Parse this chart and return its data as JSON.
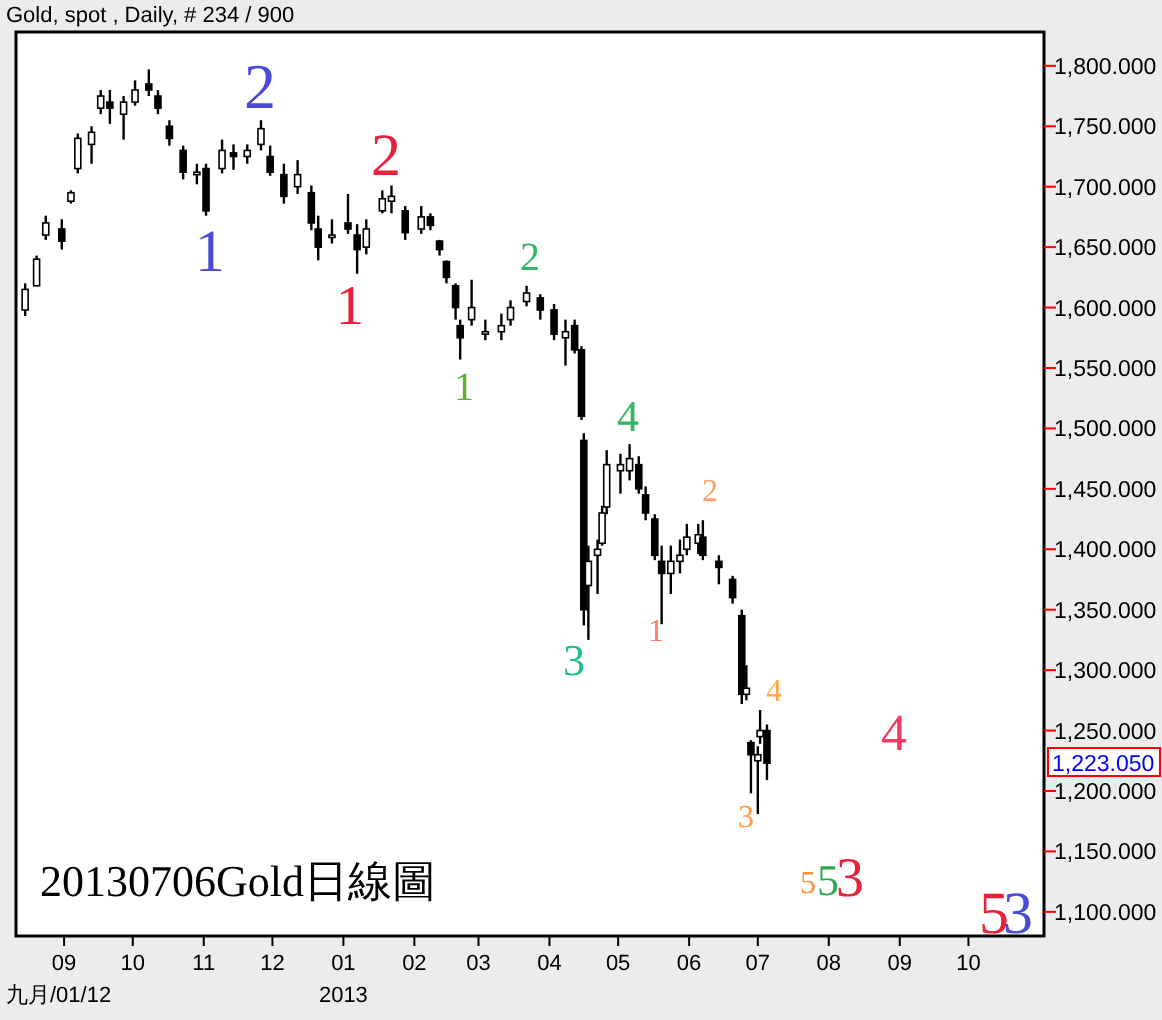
{
  "chart_data": {
    "type": "candlestick",
    "title": "Gold, spot , Daily, # 234 / 900",
    "color": "#000000",
    "x": [
      "2012-08-15",
      "2012-08-20",
      "2012-08-24",
      "2012-08-31",
      "2012-09-04",
      "2012-09-07",
      "2012-09-13",
      "2012-09-17",
      "2012-09-21",
      "2012-09-27",
      "2012-10-02",
      "2012-10-08",
      "2012-10-12",
      "2012-10-17",
      "2012-10-23",
      "2012-10-29",
      "2012-11-02",
      "2012-11-09",
      "2012-11-14",
      "2012-11-20",
      "2012-11-26",
      "2012-11-30",
      "2012-12-06",
      "2012-12-12",
      "2012-12-18",
      "2012-12-21",
      "2012-12-27",
      "2013-01-03",
      "2013-01-07",
      "2013-01-11",
      "2013-01-18",
      "2013-01-22",
      "2013-01-28",
      "2013-02-04",
      "2013-02-08",
      "2013-02-12",
      "2013-02-15",
      "2013-02-19",
      "2013-02-21",
      "2013-02-26",
      "2013-03-04",
      "2013-03-11",
      "2013-03-15",
      "2013-03-22",
      "2013-03-28",
      "2013-04-03",
      "2013-04-08",
      "2013-04-12",
      "2013-04-15",
      "2013-04-16",
      "2013-04-18",
      "2013-04-22",
      "2013-04-24",
      "2013-04-26",
      "2013-05-02",
      "2013-05-06",
      "2013-05-10",
      "2013-05-13",
      "2013-05-17",
      "2013-05-20",
      "2013-05-24",
      "2013-05-28",
      "2013-05-31",
      "2013-06-05",
      "2013-06-07",
      "2013-06-14",
      "2013-06-20",
      "2013-06-24",
      "2013-06-26",
      "2013-06-28",
      "2013-07-01",
      "2013-07-02",
      "2013-07-05"
    ],
    "ohlc": [
      [
        1598,
        1620,
        1593,
        1615
      ],
      [
        1618,
        1643,
        1618,
        1640
      ],
      [
        1660,
        1676,
        1656,
        1670
      ],
      [
        1665,
        1673,
        1648,
        1655
      ],
      [
        1688,
        1697,
        1686,
        1695
      ],
      [
        1715,
        1744,
        1711,
        1740
      ],
      [
        1735,
        1750,
        1719,
        1745
      ],
      [
        1765,
        1780,
        1760,
        1775
      ],
      [
        1770,
        1780,
        1752,
        1765
      ],
      [
        1760,
        1775,
        1739,
        1770
      ],
      [
        1770,
        1788,
        1767,
        1780
      ],
      [
        1785,
        1797,
        1775,
        1780
      ],
      [
        1775,
        1780,
        1760,
        1765
      ],
      [
        1750,
        1755,
        1734,
        1740
      ],
      [
        1730,
        1734,
        1706,
        1712
      ],
      [
        1710,
        1719,
        1702,
        1712
      ],
      [
        1715,
        1719,
        1676,
        1680
      ],
      [
        1715,
        1739,
        1711,
        1730
      ],
      [
        1728,
        1735,
        1714,
        1725
      ],
      [
        1725,
        1735,
        1719,
        1730
      ],
      [
        1735,
        1755,
        1730,
        1748
      ],
      [
        1725,
        1734,
        1709,
        1712
      ],
      [
        1710,
        1719,
        1686,
        1692
      ],
      [
        1700,
        1722,
        1694,
        1710
      ],
      [
        1695,
        1701,
        1664,
        1670
      ],
      [
        1665,
        1676,
        1639,
        1650
      ],
      [
        1658,
        1673,
        1653,
        1660
      ],
      [
        1670,
        1694,
        1661,
        1665
      ],
      [
        1660,
        1669,
        1628,
        1648
      ],
      [
        1650,
        1673,
        1644,
        1665
      ],
      [
        1680,
        1697,
        1678,
        1690
      ],
      [
        1688,
        1701,
        1678,
        1692
      ],
      [
        1680,
        1684,
        1656,
        1662
      ],
      [
        1665,
        1684,
        1661,
        1675
      ],
      [
        1675,
        1678,
        1664,
        1668
      ],
      [
        1655,
        1656,
        1643,
        1648
      ],
      [
        1638,
        1639,
        1620,
        1625
      ],
      [
        1618,
        1620,
        1590,
        1600
      ],
      [
        1585,
        1590,
        1557,
        1575
      ],
      [
        1590,
        1623,
        1585,
        1600
      ],
      [
        1578,
        1590,
        1573,
        1580
      ],
      [
        1580,
        1595,
        1573,
        1585
      ],
      [
        1590,
        1606,
        1585,
        1600
      ],
      [
        1605,
        1618,
        1601,
        1612
      ],
      [
        1608,
        1611,
        1590,
        1598
      ],
      [
        1598,
        1603,
        1573,
        1578
      ],
      [
        1575,
        1590,
        1552,
        1580
      ],
      [
        1585,
        1590,
        1562,
        1565
      ],
      [
        1565,
        1568,
        1507,
        1510
      ],
      [
        1490,
        1496,
        1337,
        1350
      ],
      [
        1370,
        1403,
        1325,
        1390
      ],
      [
        1395,
        1408,
        1363,
        1400
      ],
      [
        1405,
        1436,
        1403,
        1430
      ],
      [
        1435,
        1482,
        1429,
        1470
      ],
      [
        1465,
        1479,
        1446,
        1470
      ],
      [
        1465,
        1487,
        1457,
        1475
      ],
      [
        1470,
        1477,
        1446,
        1450
      ],
      [
        1445,
        1452,
        1424,
        1430
      ],
      [
        1425,
        1429,
        1391,
        1395
      ],
      [
        1390,
        1403,
        1338,
        1380
      ],
      [
        1380,
        1403,
        1363,
        1390
      ],
      [
        1390,
        1408,
        1380,
        1395
      ],
      [
        1400,
        1421,
        1395,
        1410
      ],
      [
        1405,
        1421,
        1396,
        1412
      ],
      [
        1410,
        1424,
        1391,
        1395
      ],
      [
        1390,
        1395,
        1371,
        1385
      ],
      [
        1375,
        1378,
        1355,
        1360
      ],
      [
        1345,
        1350,
        1272,
        1280
      ],
      [
        1280,
        1304,
        1275,
        1285
      ],
      [
        1240,
        1242,
        1198,
        1230
      ],
      [
        1225,
        1237,
        1181,
        1230
      ],
      [
        1245,
        1267,
        1239,
        1250
      ],
      [
        1250,
        1255,
        1209,
        1223.05
      ]
    ],
    "xlim": [
      "2012-08-11",
      "2013-11-03"
    ],
    "xticks": [
      {
        "value": "2012-09-01",
        "label": "09"
      },
      {
        "value": "2012-10-01",
        "label": "10"
      },
      {
        "value": "2012-11-01",
        "label": "11"
      },
      {
        "value": "2012-12-01",
        "label": "12"
      },
      {
        "value": "2013-01-01",
        "label": "01"
      },
      {
        "value": "2013-02-01",
        "label": "02"
      },
      {
        "value": "2013-03-01",
        "label": "03"
      },
      {
        "value": "2013-04-01",
        "label": "04"
      },
      {
        "value": "2013-05-01",
        "label": "05"
      },
      {
        "value": "2013-06-01",
        "label": "06"
      },
      {
        "value": "2013-07-01",
        "label": "07"
      },
      {
        "value": "2013-08-01",
        "label": "08"
      },
      {
        "value": "2013-09-01",
        "label": "09"
      },
      {
        "value": "2013-10-01",
        "label": "10"
      }
    ],
    "ylim": [
      1080,
      1828
    ],
    "yticks": [
      {
        "value": 1100,
        "label": "1,100.000"
      },
      {
        "value": 1150,
        "label": "1,150.000"
      },
      {
        "value": 1200,
        "label": "1,200.000"
      },
      {
        "value": 1250,
        "label": "1,250.000"
      },
      {
        "value": 1300,
        "label": "1,300.000"
      },
      {
        "value": 1350,
        "label": "1,350.000"
      },
      {
        "value": 1400,
        "label": "1,400.000"
      },
      {
        "value": 1450,
        "label": "1,450.000"
      },
      {
        "value": 1500,
        "label": "1,500.000"
      },
      {
        "value": 1550,
        "label": "1,550.000"
      },
      {
        "value": 1600,
        "label": "1,600.000"
      },
      {
        "value": 1650,
        "label": "1,650.000"
      },
      {
        "value": 1700,
        "label": "1,700.000"
      },
      {
        "value": 1750,
        "label": "1,750.000"
      },
      {
        "value": 1800,
        "label": "1,800.000"
      }
    ],
    "annotations": [
      "20130706Gold日線圖",
      "九月/01/12",
      "2013",
      "1,223.050",
      "1",
      "2",
      "1",
      "2",
      "1",
      "2",
      "3",
      "4",
      "1",
      "2",
      "3",
      "4",
      "4",
      "5",
      "5",
      "3",
      "5",
      "3"
    ]
  }
}
